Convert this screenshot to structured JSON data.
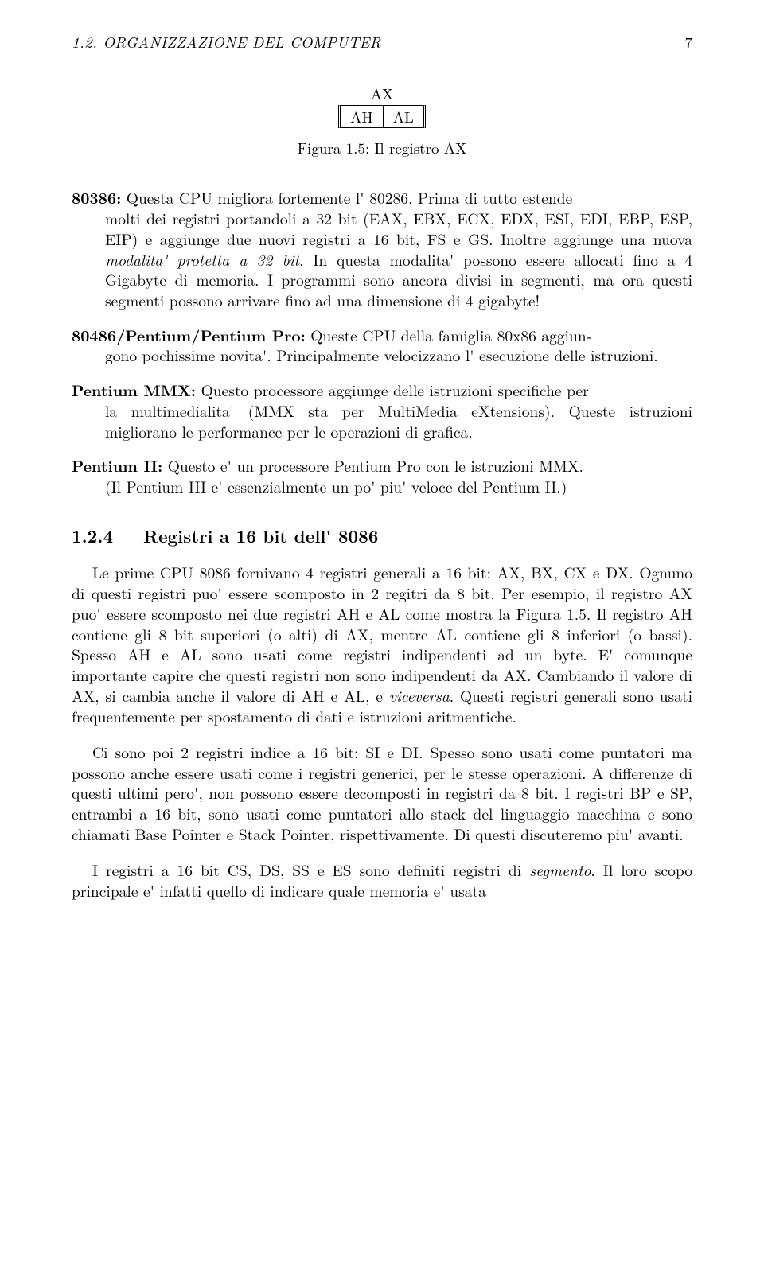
{
  "header": {
    "section": "1.2. ORGANIZZAZIONE DEL COMPUTER",
    "pageNumber": "7"
  },
  "figure": {
    "topLabel": "AX",
    "cells": [
      "AH",
      "AL"
    ],
    "caption": "Figura 1.5: Il registro AX"
  },
  "defs": {
    "d1": {
      "term": "80386:",
      "lead": " Questa CPU migliora fortemente l' 80286. Prima di tutto estende",
      "body": "molti dei registri portandoli a 32 bit (EAX, EBX, ECX, EDX, ESI, EDI, EBP, ESP, EIP) e aggiunge due nuovi registri a 16 bit, FS e GS. Inoltre aggiunge una nuova ",
      "emph1": "modalita' protetta a 32 bit",
      "body2": ". In questa modalita' possono essere allocati fino a 4 Gigabyte di memoria. I programmi sono ancora divisi in segmenti, ma ora questi segmenti possono arrivare fino ad una dimensione di 4 gigabyte!"
    },
    "d2": {
      "term": "80486/Pentium/Pentium Pro:",
      "lead": " Queste CPU della famiglia 80x86 aggiun-",
      "body": "gono pochissime novita'. Principalmente velocizzano l' esecuzione delle istruzioni."
    },
    "d3": {
      "term": "Pentium MMX:",
      "lead": " Questo processore aggiunge delle istruzioni specifiche per",
      "body": "la multimedialita' (MMX sta per MultiMedia eXtensions). Queste istruzioni migliorano le performance per le operazioni di grafica."
    },
    "d4": {
      "term": "Pentium II:",
      "lead": " Questo e' un processore Pentium Pro con le istruzioni MMX.",
      "body": "(Il Pentium III e' essenzialmente un po' piu' veloce del Pentium II.)"
    }
  },
  "subsection": {
    "num": "1.2.4",
    "title": "Registri a 16 bit dell' 8086"
  },
  "paras": {
    "p1a": "Le prime CPU 8086 fornivano 4 registri generali a 16 bit: AX, BX, CX e DX. Ognuno di questi registri puo' essere scomposto in 2 regitri da 8 bit. Per esempio, il registro AX puo' essere scomposto nei due registri AH e AL come mostra la Figura 1.5. Il registro AH contiene gli 8 bit superiori (o alti) di AX, mentre AL contiene gli 8 inferiori (o bassi). Spesso AH e AL sono usati come registri indipendenti ad un byte. E' comunque importante capire che questi registri non sono indipendenti da AX. Cambiando il valore di AX, si cambia anche il valore di AH e AL, e ",
    "p1emph": "viceversa",
    "p1b": ". Questi registri generali sono usati frequentemente per spostamento di dati e istruzioni aritmentiche.",
    "p2": "Ci sono poi 2 registri indice a 16 bit: SI e DI. Spesso sono usati come puntatori ma possono anche essere usati come i registri generici, per le stesse operazioni. A differenze di questi ultimi pero', non possono essere decomposti in registri da 8 bit. I registri BP e SP, entrambi a 16 bit, sono usati come puntatori allo stack del linguaggio macchina e sono chiamati Base Pointer e Stack Pointer, rispettivamente. Di questi discuteremo piu' avanti.",
    "p3a": "I registri a 16 bit CS, DS, SS e ES sono definiti registri di ",
    "p3emph": "segmento",
    "p3b": ". Il loro scopo principale e' infatti quello di indicare quale memoria e' usata"
  }
}
